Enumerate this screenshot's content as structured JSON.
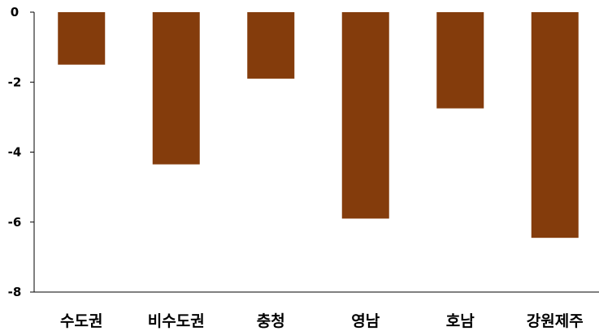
{
  "chart_data": {
    "type": "bar",
    "title": "",
    "xlabel": "",
    "ylabel": "",
    "categories": [
      "수도권",
      "비수도권",
      "충청",
      "영남",
      "호남",
      "강원제주"
    ],
    "values": [
      -1.5,
      -4.35,
      -1.9,
      -5.9,
      -2.75,
      -6.45
    ],
    "ylim": [
      -8,
      0
    ],
    "yticks": [
      0,
      -2,
      -4,
      -6,
      -8
    ],
    "ytick_labels": [
      "0",
      "-2",
      "-4",
      "-6",
      "-8"
    ],
    "bar_color": "#843C0C",
    "grid": false,
    "legend": "none"
  }
}
